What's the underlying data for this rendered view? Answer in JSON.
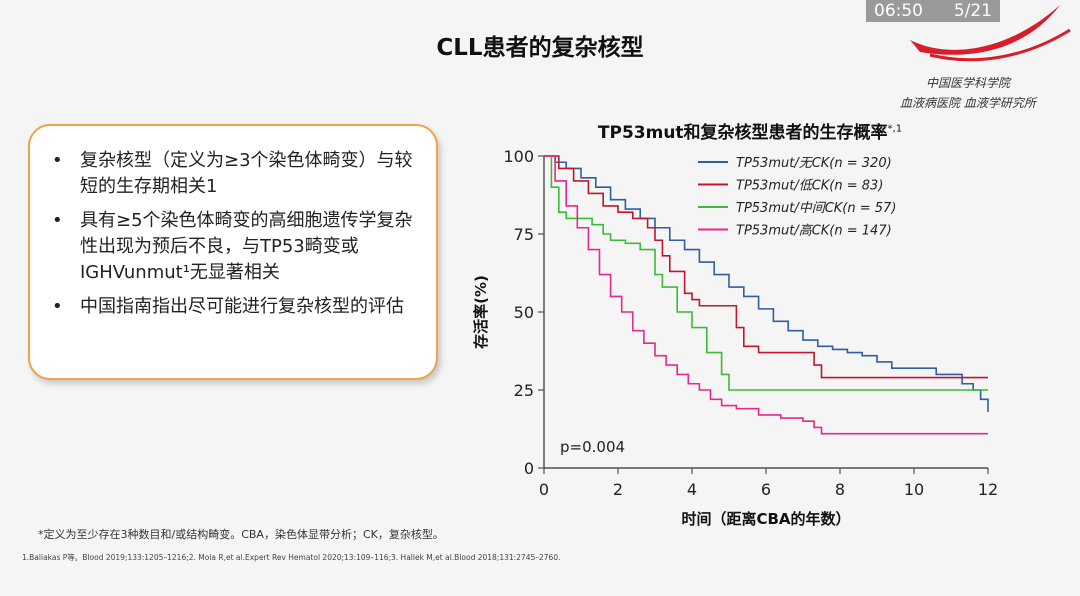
{
  "status": {
    "time": "06:50",
    "page": "5/21"
  },
  "logo": {
    "line1": "中国医学科学院",
    "line2": "血液病医院 血液学研究所"
  },
  "slide_title": "CLL患者的复杂核型",
  "bullets": [
    "复杂核型（定义为≥3个染色体畸变）与较短的生存期相关1",
    "具有≥5个染色体畸变的高细胞遗传学复杂性出现为预后不良，与TP53畸变或IGHVunmut¹无显著相关",
    "中国指南指出尽可能进行复杂核型的评估"
  ],
  "footnotes": {
    "definition": "*定义为至少存在3种数目和/或结构畸变。CBA，染色体显带分析；CK，复杂核型。",
    "references": "1.Baliakas P等。Blood 2019;133:1205–1216;2. Moia R,et al.Expert Rev Hematol 2020;13:109–116;3. Hallek M,et al.Blood 2018;131:2745–2760."
  },
  "chart_data": {
    "type": "line",
    "title": "TP53mut和复杂核型患者的生存概率",
    "title_superscript": "*,1",
    "xlabel": "时间（距离CBA的年数）",
    "ylabel": "存活率(%)",
    "xlim": [
      0,
      12
    ],
    "ylim": [
      0,
      100
    ],
    "xticks": [
      0,
      2,
      4,
      6,
      8,
      10,
      12
    ],
    "yticks": [
      0,
      25,
      50,
      75,
      100
    ],
    "annotation": "p=0.004",
    "legend_position": "top-right",
    "series": [
      {
        "name": "TP53mut/无CK(n = 320)",
        "color": "#2e5f9e",
        "x": [
          0,
          0.3,
          0.6,
          1.0,
          1.4,
          1.8,
          2.2,
          2.6,
          3.0,
          3.4,
          3.8,
          4.2,
          4.6,
          5.0,
          5.4,
          5.8,
          6.2,
          6.6,
          7.0,
          7.4,
          7.8,
          8.2,
          8.6,
          9.0,
          9.4,
          10.0,
          10.6,
          11.0,
          11.3,
          11.6,
          11.8,
          12.0
        ],
        "y": [
          100,
          98,
          96,
          93,
          90,
          86,
          83,
          80,
          77,
          73,
          70,
          66,
          62,
          58,
          55,
          51,
          47,
          44,
          41,
          39,
          38,
          37,
          36,
          34,
          32,
          32,
          30,
          30,
          27,
          25,
          22,
          18
        ]
      },
      {
        "name": "TP53mut/低CK(n = 83)",
        "color": "#c0162e",
        "x": [
          0,
          0.4,
          0.8,
          1.2,
          1.6,
          2.0,
          2.4,
          2.8,
          3.0,
          3.2,
          3.4,
          3.8,
          4.0,
          4.2,
          4.6,
          5.0,
          5.2,
          5.4,
          5.8,
          6.2,
          6.6,
          7.0,
          7.3,
          7.5,
          8.0,
          9.0,
          10.0,
          11.0,
          12.0
        ],
        "y": [
          100,
          96,
          92,
          88,
          84,
          82,
          80,
          77,
          73,
          68,
          63,
          56,
          54,
          52,
          52,
          52,
          45,
          39,
          37,
          37,
          37,
          37,
          33,
          29,
          29,
          29,
          29,
          29,
          29
        ]
      },
      {
        "name": "TP53mut/中间CK(n = 57)",
        "color": "#3cbb3a",
        "x": [
          0,
          0.2,
          0.4,
          0.6,
          1.0,
          1.3,
          1.6,
          1.8,
          2.2,
          2.6,
          3.0,
          3.2,
          3.6,
          4.0,
          4.4,
          4.6,
          4.8,
          5.0,
          6.0,
          8.0,
          10.0,
          12.0
        ],
        "y": [
          100,
          90,
          82,
          80,
          80,
          78,
          75,
          73,
          72,
          70,
          62,
          58,
          50,
          45,
          37,
          37,
          30,
          25,
          25,
          25,
          25,
          25
        ]
      },
      {
        "name": "TP53mut/高CK(n = 147)",
        "color": "#e6288f",
        "x": [
          0,
          0.3,
          0.6,
          0.9,
          1.2,
          1.5,
          1.8,
          2.1,
          2.4,
          2.7,
          3.0,
          3.3,
          3.6,
          3.9,
          4.2,
          4.5,
          4.8,
          5.2,
          5.8,
          6.4,
          7.0,
          7.3,
          7.5,
          8.0,
          9.0,
          10.0,
          11.0,
          12.0
        ],
        "y": [
          100,
          92,
          84,
          77,
          70,
          62,
          55,
          50,
          44,
          40,
          36,
          33,
          30,
          27,
          25,
          22,
          20,
          19,
          17,
          16,
          15,
          13,
          11,
          11,
          11,
          11,
          11,
          11
        ]
      }
    ]
  }
}
